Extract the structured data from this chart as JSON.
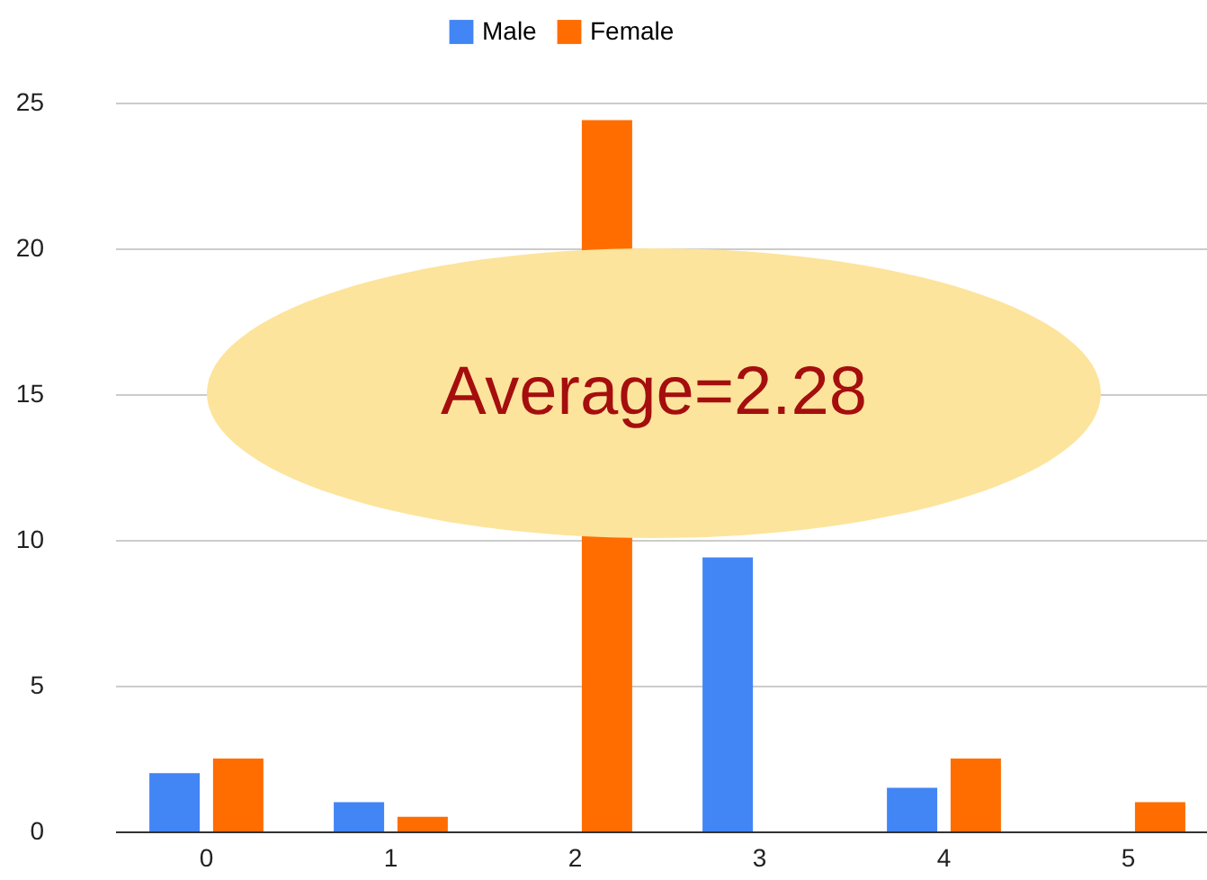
{
  "chart_data": {
    "type": "bar",
    "categories": [
      "0",
      "1",
      "2",
      "3",
      "4",
      "5"
    ],
    "series": [
      {
        "name": "Male",
        "color": "#4285f4",
        "values": [
          2,
          1,
          null,
          9.4,
          1.5,
          0
        ]
      },
      {
        "name": "Female",
        "color": "#ff6d01",
        "values": [
          2.5,
          0.5,
          24.4,
          null,
          2.5,
          1
        ]
      }
    ],
    "ylim": [
      0,
      25
    ],
    "yticks": [
      0,
      5,
      10,
      15,
      20,
      25
    ],
    "grid": "y",
    "legend": "top",
    "annotations": [
      "Average=2.28"
    ]
  }
}
